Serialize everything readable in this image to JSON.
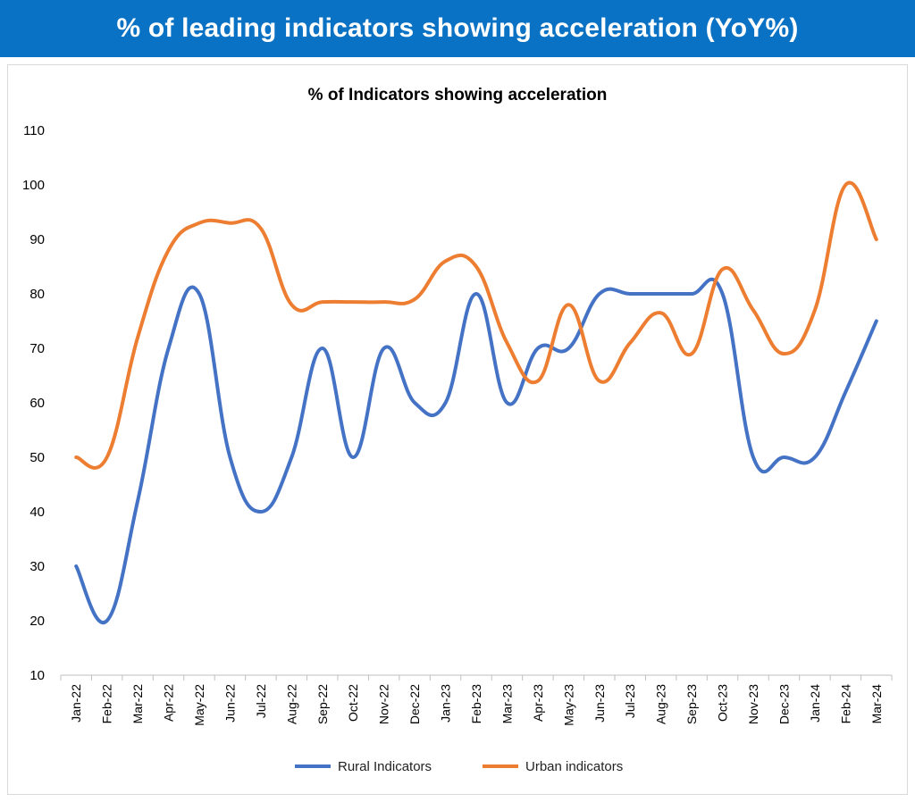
{
  "banner": {
    "title": "% of leading indicators showing acceleration (YoY%)",
    "color": "#0a72c4"
  },
  "chart_data": {
    "type": "line",
    "title": "% of Indicators showing acceleration",
    "xlabel": "",
    "ylabel": "",
    "ylim": [
      10,
      110
    ],
    "yticks": [
      10,
      20,
      30,
      40,
      50,
      60,
      70,
      80,
      90,
      100,
      110
    ],
    "grid": false,
    "legend_position": "bottom",
    "categories": [
      "Jan-22",
      "Feb-22",
      "Mar-22",
      "Apr-22",
      "May-22",
      "Jun-22",
      "Jul-22",
      "Aug-22",
      "Sep-22",
      "Oct-22",
      "Nov-22",
      "Dec-22",
      "Jan-23",
      "Feb-23",
      "Mar-23",
      "Apr-23",
      "May-23",
      "Jun-23",
      "Jul-23",
      "Aug-23",
      "Sep-23",
      "Oct-23",
      "Nov-23",
      "Dec-23",
      "Jan-24",
      "Feb-24",
      "Mar-24"
    ],
    "series": [
      {
        "name": "Rural Indicators",
        "color": "#4472c4",
        "values": [
          30,
          20,
          42,
          70,
          80,
          50,
          40,
          50,
          70,
          50,
          70,
          60,
          60,
          80,
          60,
          70,
          70,
          80,
          80,
          80,
          80,
          80,
          50,
          50,
          50,
          62,
          75
        ]
      },
      {
        "name": "Urban indicators",
        "color": "#ed7d31",
        "values": [
          50,
          50,
          72,
          88,
          93,
          93,
          92,
          78,
          78.5,
          78.5,
          78.5,
          79,
          86,
          85,
          71,
          64,
          78,
          64,
          71,
          76.5,
          69,
          84.5,
          77,
          69,
          77,
          100,
          90
        ]
      }
    ]
  }
}
